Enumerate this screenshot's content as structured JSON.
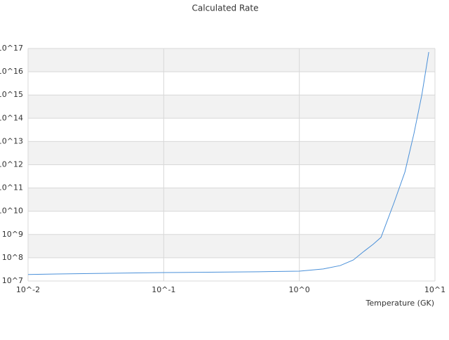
{
  "chart_data": {
    "type": "line",
    "title": "Calculated Rate",
    "x_label": "Temperature (GK)",
    "x": [
      0.01,
      0.0165,
      0.04,
      0.1,
      0.5,
      1,
      1.5,
      2,
      2.5,
      3,
      3.5,
      4,
      5,
      6,
      7,
      8,
      9
    ],
    "series": [
      {
        "name": "Calculated Rate",
        "color": "#4a90d9",
        "values": [
          19000000,
          20000000,
          21500000,
          23000000,
          25000000,
          26500000,
          33000000,
          46000000,
          80000000,
          190000000,
          380000000,
          750000000,
          24000000000,
          480000000000,
          22000000000000,
          1000000000000000,
          70000000000000000
        ]
      }
    ],
    "xscale": "log",
    "yscale": "log",
    "xlim": [
      0.01,
      10
    ],
    "ylim": [
      10000000,
      100000000000000000
    ],
    "xticks": [
      {
        "value": 0.01,
        "label": "10^-2"
      },
      {
        "value": 0.1,
        "label": "10^-1"
      },
      {
        "value": 1,
        "label": "10^0"
      },
      {
        "value": 10,
        "label": "10^1"
      }
    ],
    "yticks": [
      {
        "value": 10000000,
        "label": "10^7"
      },
      {
        "value": 100000000,
        "label": "10^8"
      },
      {
        "value": 1000000000,
        "label": "10^9"
      },
      {
        "value": 10000000000,
        "label": "10^10"
      },
      {
        "value": 100000000000,
        "label": "10^11"
      },
      {
        "value": 1000000000000,
        "label": "10^12"
      },
      {
        "value": 10000000000000,
        "label": "10^13"
      },
      {
        "value": 100000000000000,
        "label": "10^14"
      },
      {
        "value": 1000000000000000,
        "label": "10^15"
      },
      {
        "value": 10000000000000000,
        "label": "10^16"
      },
      {
        "value": 100000000000000000,
        "label": "10^17"
      }
    ],
    "grid": true
  }
}
